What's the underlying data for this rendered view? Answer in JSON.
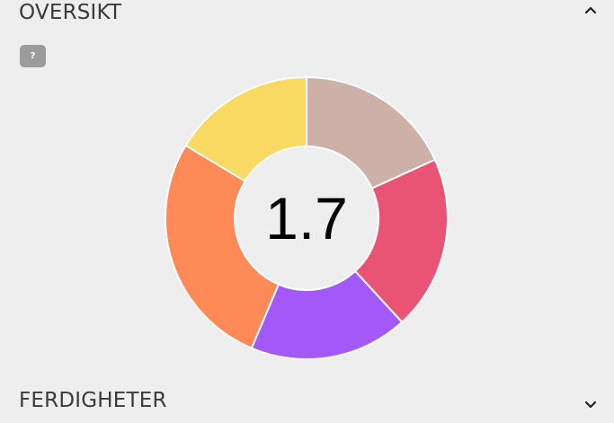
{
  "overview": {
    "title": "OVERSIKT",
    "help_label": "?",
    "toggle_icon": "chevron-up-icon"
  },
  "skills": {
    "title": "FERDIGHETER",
    "toggle_icon": "chevron-down-icon"
  },
  "chart_data": {
    "type": "pie",
    "donut": true,
    "center_label": "1.7",
    "slices": [
      {
        "value": 1,
        "color": "#cdb0a8"
      },
      {
        "value": 1.1,
        "color": "#ea5474"
      },
      {
        "value": 1,
        "color": "#a259f7"
      },
      {
        "value": 1.5,
        "color": "#fe8a58"
      },
      {
        "value": 0.9,
        "color": "#f8da63"
      }
    ]
  }
}
